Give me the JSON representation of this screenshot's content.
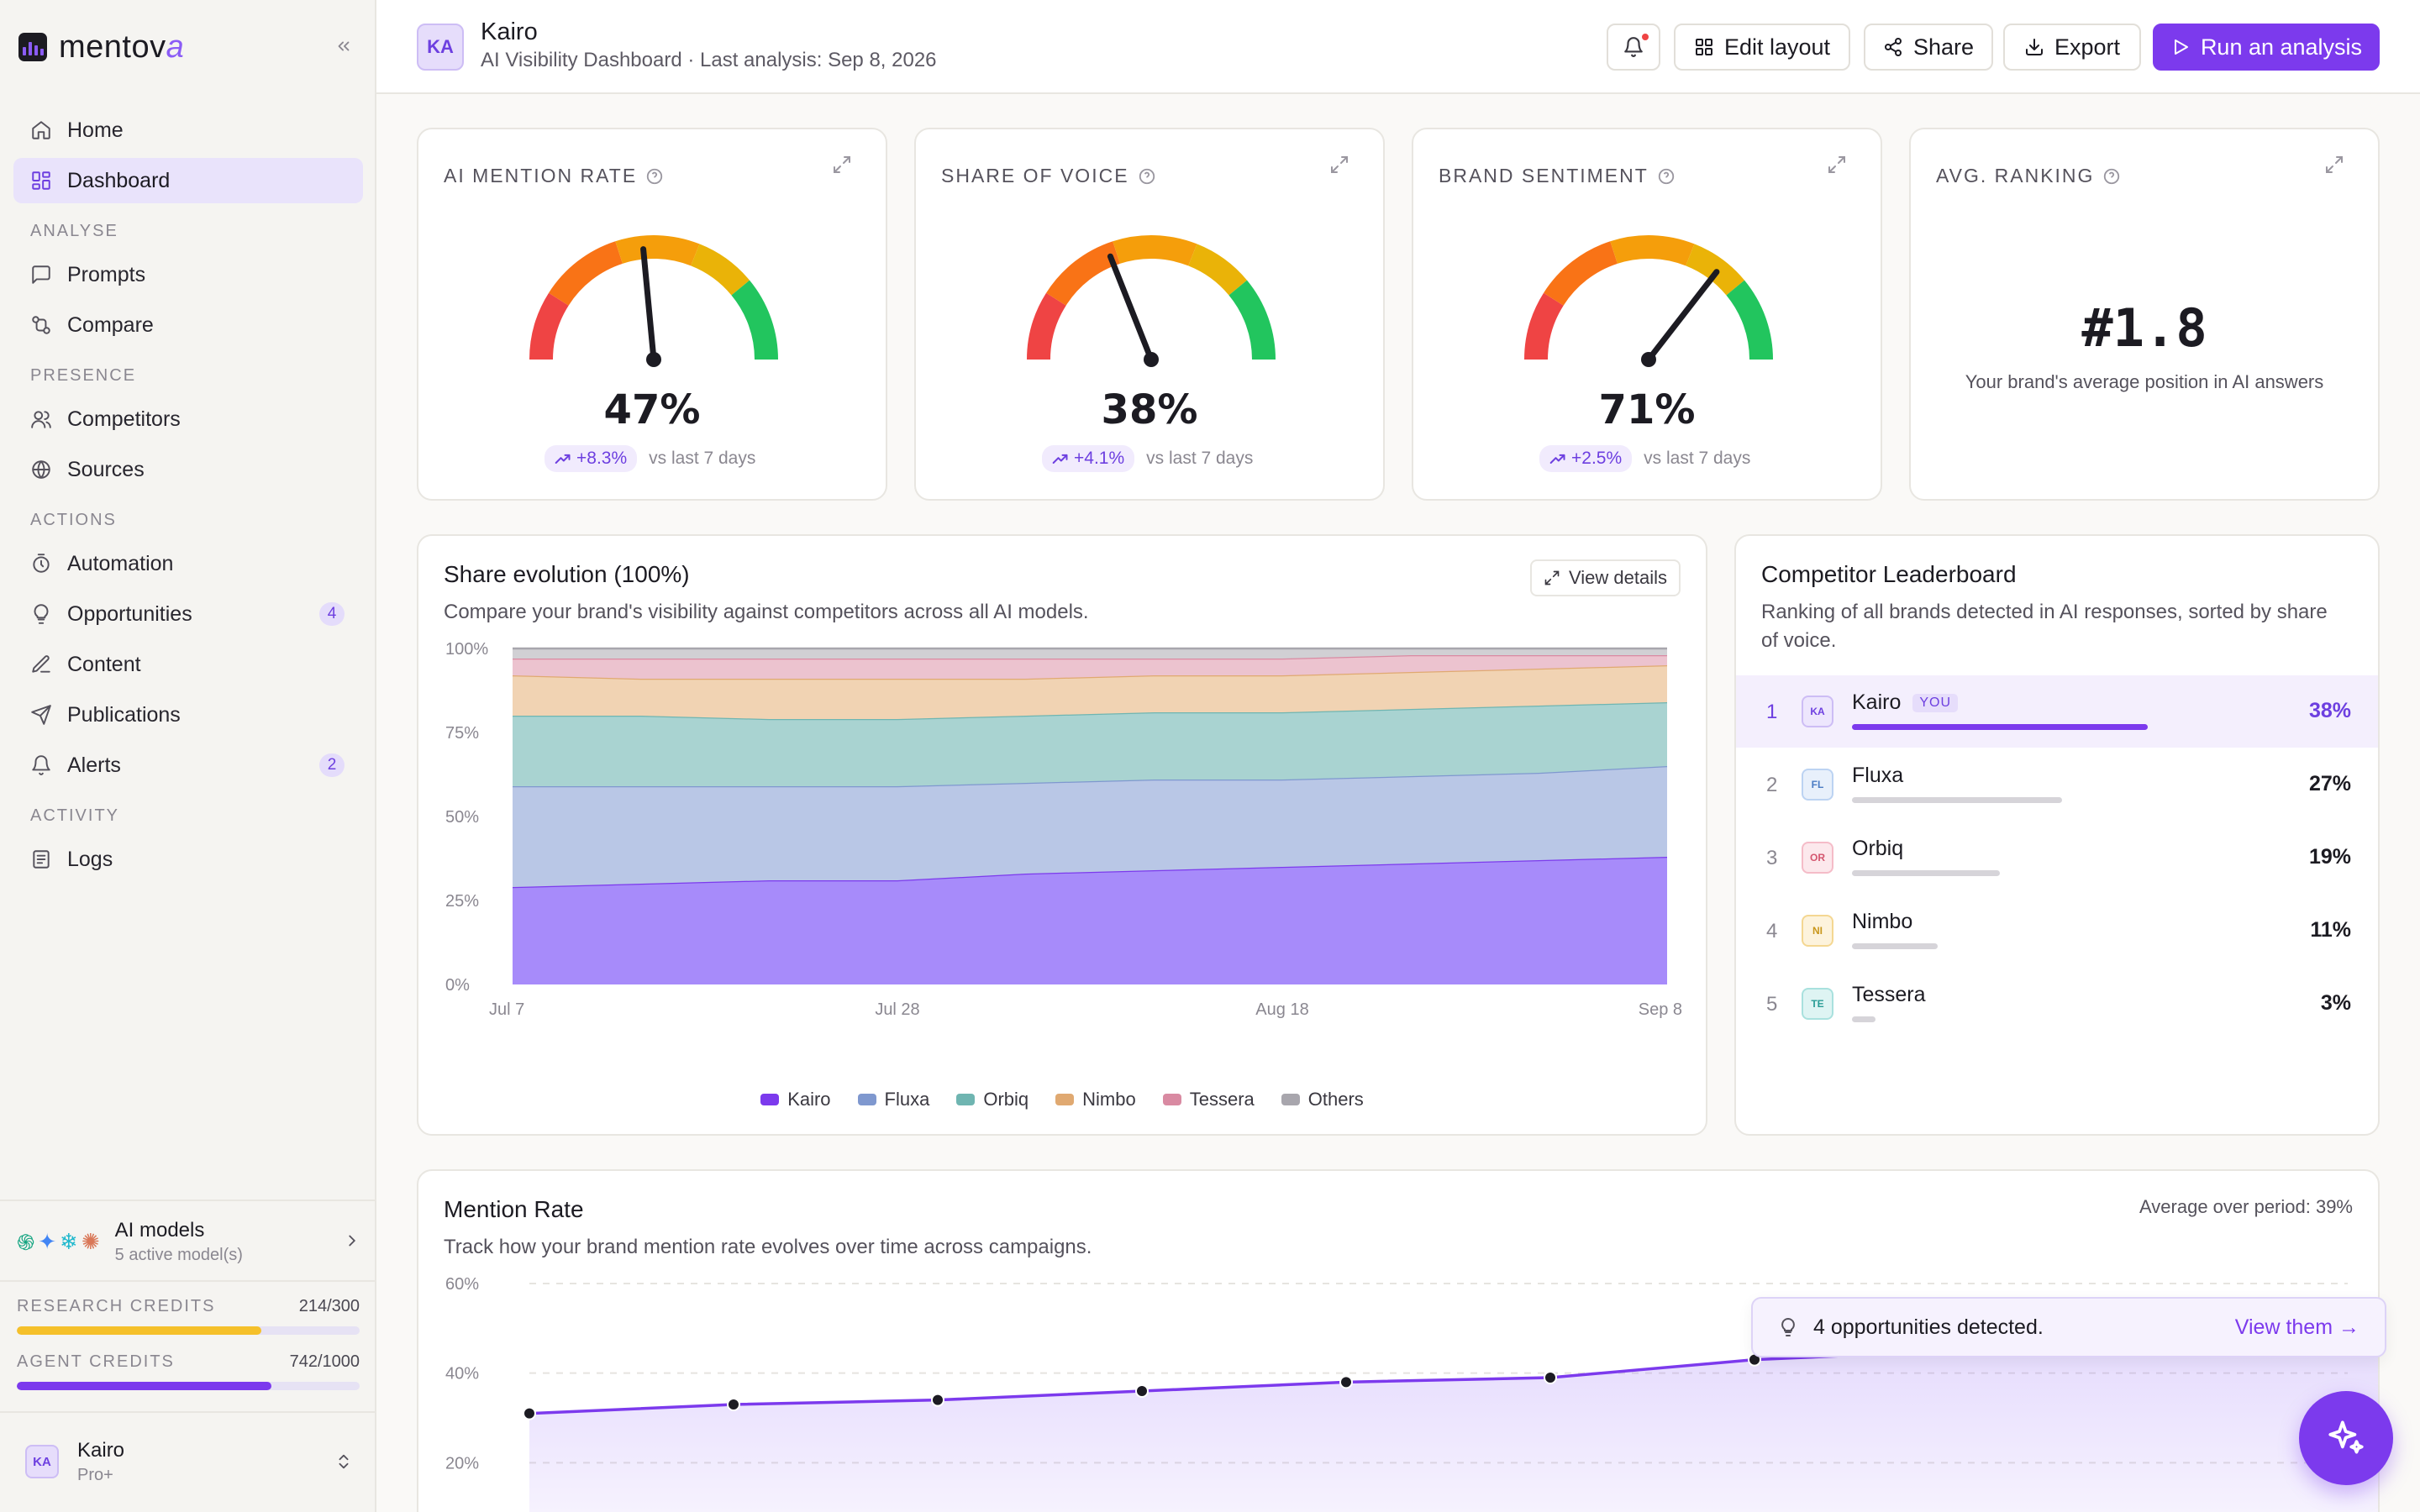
{
  "app": {
    "logo_text_main": "mentov",
    "logo_text_accent": "a"
  },
  "sidebar": {
    "nav_top": [
      {
        "label": "Home",
        "icon": "home-icon"
      },
      {
        "label": "Dashboard",
        "icon": "grid-icon",
        "active": true
      }
    ],
    "sections": [
      {
        "title": "ANALYSE",
        "items": [
          {
            "label": "Prompts",
            "icon": "chat-icon"
          },
          {
            "label": "Compare",
            "icon": "compare-icon"
          }
        ]
      },
      {
        "title": "PRESENCE",
        "items": [
          {
            "label": "Competitors",
            "icon": "users-icon"
          },
          {
            "label": "Sources",
            "icon": "globe-icon"
          }
        ]
      },
      {
        "title": "ACTIONS",
        "items": [
          {
            "label": "Automation",
            "icon": "timer-icon"
          },
          {
            "label": "Opportunities",
            "icon": "lightbulb-icon",
            "badge": "4"
          },
          {
            "label": "Content",
            "icon": "pen-icon"
          },
          {
            "label": "Publications",
            "icon": "send-icon"
          },
          {
            "label": "Alerts",
            "icon": "bell-icon",
            "badge": "2"
          }
        ]
      },
      {
        "title": "ACTIVITY",
        "items": [
          {
            "label": "Logs",
            "icon": "logs-icon"
          }
        ]
      }
    ],
    "models": {
      "title": "AI models",
      "subtitle": "5 active model(s)"
    },
    "credits": [
      {
        "label": "RESEARCH CREDITS",
        "value": "214/300",
        "used": 214,
        "total": 300,
        "color": "#f5c02a"
      },
      {
        "label": "AGENT CREDITS",
        "value": "742/1000",
        "used": 742,
        "total": 1000,
        "color": "#7c3aed"
      }
    ],
    "user": {
      "initials": "KA",
      "name": "Kairo",
      "plan": "Pro+"
    }
  },
  "header": {
    "initials": "KA",
    "title": "Kairo",
    "subtitle": "AI Visibility Dashboard · Last analysis: Sep 8, 2026",
    "buttons": {
      "edit_layout": "Edit layout",
      "share": "Share",
      "export": "Export",
      "run": "Run an analysis"
    }
  },
  "kpis": [
    {
      "label": "AI MENTION RATE",
      "value": "47%",
      "gauge_fraction": 0.47,
      "delta": "+8.3%",
      "delta_note": "vs last 7 days"
    },
    {
      "label": "SHARE OF VOICE",
      "value": "38%",
      "gauge_fraction": 0.38,
      "delta": "+4.1%",
      "delta_note": "vs last 7 days"
    },
    {
      "label": "BRAND SENTIMENT",
      "value": "71%",
      "gauge_fraction": 0.71,
      "delta": "+2.5%",
      "delta_note": "vs last 7 days"
    },
    {
      "label": "AVG. RANKING",
      "value": "#1.8",
      "caption": "Your brand's average position in AI answers"
    }
  ],
  "share_evolution": {
    "title": "Share evolution (100%)",
    "subtitle": "Compare your brand's visibility against competitors across all AI models.",
    "view_details": "View details"
  },
  "leaderboard": {
    "title": "Competitor Leaderboard",
    "subtitle": "Ranking of all brands detected in AI responses, sorted by share of voice.",
    "you_label": "YOU",
    "rows": [
      {
        "rank": "1",
        "initials": "KA",
        "name": "Kairo",
        "pct": "38%",
        "share": 38,
        "you": true,
        "color": "#7c3aed",
        "bg": "#ede6fd",
        "border": "#cdbdf5",
        "fg": "#6d3fe0"
      },
      {
        "rank": "2",
        "initials": "FL",
        "name": "Fluxa",
        "pct": "27%",
        "share": 27,
        "color": "#d6d4d9",
        "bg": "#e8f0fb",
        "border": "#bcd3f2",
        "fg": "#4b7cc4"
      },
      {
        "rank": "3",
        "initials": "OR",
        "name": "Orbiq",
        "pct": "19%",
        "share": 19,
        "color": "#d6d4d9",
        "bg": "#fce8ec",
        "border": "#f5bcc8",
        "fg": "#d4566f"
      },
      {
        "rank": "4",
        "initials": "NI",
        "name": "Nimbo",
        "pct": "11%",
        "share": 11,
        "color": "#d6d4d9",
        "bg": "#fdf3dc",
        "border": "#f4d792",
        "fg": "#c9971c"
      },
      {
        "rank": "5",
        "initials": "TE",
        "name": "Tessera",
        "pct": "3%",
        "share": 3,
        "color": "#d6d4d9",
        "bg": "#def4f3",
        "border": "#a9e1de",
        "fg": "#2a9d96"
      }
    ]
  },
  "mention_rate": {
    "title": "Mention Rate",
    "subtitle": "Track how your brand mention rate evolves over time across campaigns.",
    "average": "Average over period: 39%"
  },
  "toast": {
    "text": "4 opportunities detected.",
    "link": "View them →"
  },
  "chart_data": [
    {
      "type": "area",
      "stacked_percent": true,
      "title": "Share evolution (100%)",
      "xlabel": "",
      "ylabel": "",
      "x_ticks": [
        "Jul 7",
        "Jul 28",
        "Aug 18",
        "Sep 8"
      ],
      "x": [
        0,
        1,
        2,
        3,
        4,
        5,
        6,
        7,
        8,
        9
      ],
      "y_ticks": [
        "0%",
        "25%",
        "50%",
        "75%",
        "100%"
      ],
      "ylim": [
        0,
        100
      ],
      "grid": false,
      "legend": "bottom",
      "series": [
        {
          "name": "Kairo",
          "color": "#a78bfa",
          "line": "#7c3aed",
          "values": [
            29,
            30,
            31,
            31,
            33,
            34,
            35,
            36,
            37,
            38
          ]
        },
        {
          "name": "Fluxa",
          "color": "#b9c7e6",
          "line": "#7f98cf",
          "values": [
            30,
            29,
            28,
            28,
            27,
            27,
            26,
            26,
            26,
            27
          ]
        },
        {
          "name": "Orbiq",
          "color": "#a9d3d1",
          "line": "#6fb5b1",
          "values": [
            21,
            21,
            20,
            20,
            20,
            20,
            20,
            20,
            20,
            19
          ]
        },
        {
          "name": "Nimbo",
          "color": "#f1d3b3",
          "line": "#e0a971",
          "values": [
            12,
            11,
            12,
            12,
            11,
            11,
            11,
            11,
            11,
            11
          ]
        },
        {
          "name": "Tessera",
          "color": "#ecc3cf",
          "line": "#d98aa2",
          "values": [
            5,
            6,
            6,
            6,
            6,
            5,
            5,
            5,
            4,
            3
          ]
        },
        {
          "name": "Others",
          "color": "#d1d0d4",
          "line": "#a8a6ad",
          "values": [
            3,
            3,
            3,
            3,
            3,
            3,
            3,
            2,
            2,
            2
          ]
        }
      ]
    },
    {
      "type": "line",
      "title": "Mention Rate",
      "xlabel": "",
      "ylabel": "",
      "y_ticks": [
        "60%",
        "40%",
        "20%"
      ],
      "ylim": [
        0,
        60
      ],
      "grid": true,
      "series": [
        {
          "values": [
            31,
            33,
            34,
            36,
            38,
            39,
            43,
            45,
            46,
            47
          ],
          "color": "#7c3aed"
        }
      ]
    }
  ]
}
